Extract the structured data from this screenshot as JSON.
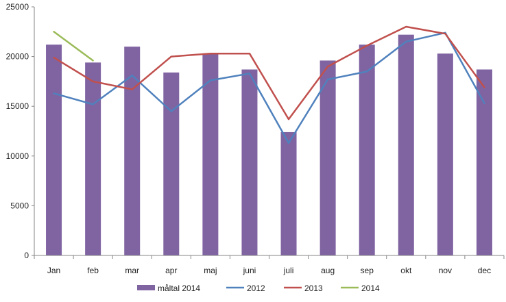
{
  "chart_data": {
    "type": "bar",
    "categories": [
      "Jan",
      "feb",
      "mar",
      "apr",
      "maj",
      "juni",
      "juli",
      "aug",
      "sep",
      "okt",
      "nov",
      "dec"
    ],
    "ylim": [
      0,
      25000
    ],
    "yticks": [
      0,
      5000,
      10000,
      15000,
      20000,
      25000
    ],
    "grid": false,
    "legend_position": "bottom",
    "series": [
      {
        "name": "måltal 2014",
        "kind": "bar",
        "color": "#8064A2",
        "values": [
          21200,
          19400,
          21000,
          18400,
          20300,
          18700,
          12400,
          19600,
          21200,
          22200,
          20300,
          18700
        ]
      },
      {
        "name": "2012",
        "kind": "line",
        "color": "#4F81BD",
        "values": [
          16300,
          15200,
          18100,
          14500,
          17600,
          18300,
          11300,
          17700,
          18500,
          21500,
          22400,
          15300
        ]
      },
      {
        "name": "2013",
        "kind": "line",
        "color": "#C0504D",
        "values": [
          19900,
          17500,
          16700,
          20000,
          20300,
          20300,
          13700,
          19000,
          21100,
          23000,
          22300,
          16900
        ]
      },
      {
        "name": "2014",
        "kind": "line",
        "color": "#9BBB59",
        "values": [
          22500,
          19600,
          null,
          null,
          null,
          null,
          null,
          null,
          null,
          null,
          null,
          null
        ]
      }
    ]
  }
}
